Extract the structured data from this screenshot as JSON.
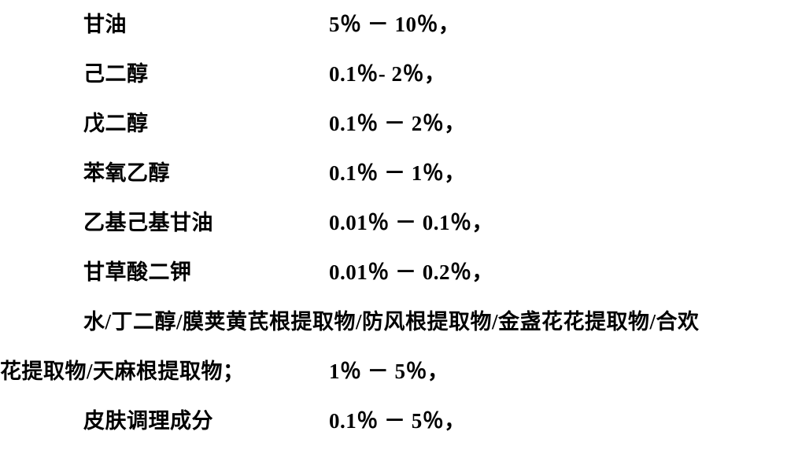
{
  "rows": [
    {
      "label": "甘油",
      "value": "5％ － 10％，"
    },
    {
      "label": "己二醇",
      "value": "0.1％- 2％，"
    },
    {
      "label": "戊二醇",
      "value": "0.1％ － 2％，"
    },
    {
      "label": "苯氧乙醇",
      "value": "0.1％ － 1％，"
    },
    {
      "label": "乙基己基甘油",
      "value": "0.01％ － 0.1％，"
    },
    {
      "label": "甘草酸二钾",
      "value": "0.01％ － 0.2％，"
    }
  ],
  "long": {
    "line1": "水/丁二醇/膜荚黄芪根提取物/防风根提取物/金盏花花提取物/合欢",
    "line2_label": "花提取物/天麻根提取物；",
    "line2_value": "1％ － 5％，"
  },
  "last": {
    "label": "皮肤调理成分",
    "value": "0.1％ － 5％，"
  }
}
